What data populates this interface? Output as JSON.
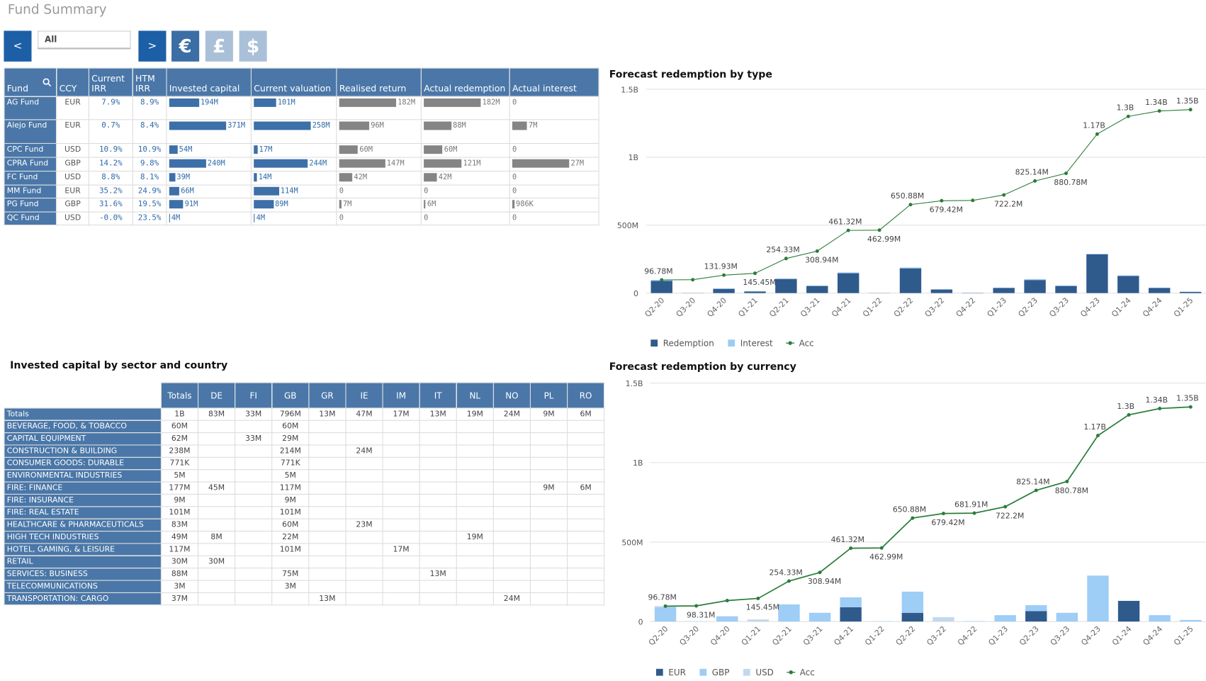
{
  "header": {
    "title": "Fund Summary"
  },
  "toolbar": {
    "prev": "<",
    "selection": "All",
    "next": ">",
    "currencies": [
      "€",
      "£",
      "$"
    ]
  },
  "fund_table": {
    "columns": [
      "Fund",
      "CCY",
      "Current IRR",
      "HTM IRR",
      "Invested capital",
      "Current valuation",
      "Realised return",
      "Actual redemption",
      "Actual interest"
    ],
    "rows": [
      [
        "AG Fund",
        "EUR",
        "7.9%",
        "8.9%",
        "194M",
        "101M",
        "182M",
        "182M",
        "0"
      ],
      [
        "Alejo Fund",
        "EUR",
        "0.7%",
        "8.4%",
        "371M",
        "258M",
        "96M",
        "88M",
        "7M"
      ],
      [
        "CPC Fund",
        "USD",
        "10.9%",
        "10.9%",
        "54M",
        "17M",
        "60M",
        "60M",
        "0"
      ],
      [
        "CPRA Fund",
        "GBP",
        "14.2%",
        "9.8%",
        "240M",
        "244M",
        "147M",
        "121M",
        "27M"
      ],
      [
        "FC Fund",
        "USD",
        "8.8%",
        "8.1%",
        "39M",
        "14M",
        "42M",
        "42M",
        "0"
      ],
      [
        "MM Fund",
        "EUR",
        "35.2%",
        "24.9%",
        "66M",
        "114M",
        "0",
        "0",
        "0"
      ],
      [
        "PG Fund",
        "GBP",
        "31.6%",
        "19.5%",
        "91M",
        "89M",
        "7M",
        "6M",
        "986K"
      ],
      [
        "QC Fund",
        "USD",
        "-0.0%",
        "23.5%",
        "4M",
        "4M",
        "0",
        "0",
        "0"
      ]
    ]
  },
  "sector_table": {
    "title": "Invested capital by sector and country",
    "columns": [
      "Totals",
      "DE",
      "FI",
      "GB",
      "GR",
      "IE",
      "IM",
      "IT",
      "NL",
      "NO",
      "PL",
      "RO"
    ],
    "rows": [
      [
        "Totals",
        "1B",
        "83M",
        "33M",
        "796M",
        "13M",
        "47M",
        "17M",
        "13M",
        "19M",
        "24M",
        "9M",
        "6M"
      ],
      [
        "BEVERAGE, FOOD, & TOBACCO",
        "60M",
        null,
        null,
        "60M",
        null,
        null,
        null,
        null,
        null,
        null,
        null,
        null
      ],
      [
        "CAPITAL EQUIPMENT",
        "62M",
        null,
        "33M",
        "29M",
        null,
        null,
        null,
        null,
        null,
        null,
        null,
        null
      ],
      [
        "CONSTRUCTION & BUILDING",
        "238M",
        null,
        null,
        "214M",
        null,
        "24M",
        null,
        null,
        null,
        null,
        null,
        null
      ],
      [
        "CONSUMER GOODS: DURABLE",
        "771K",
        null,
        null,
        "771K",
        null,
        null,
        null,
        null,
        null,
        null,
        null,
        null
      ],
      [
        "ENVIRONMENTAL INDUSTRIES",
        "5M",
        null,
        null,
        "5M",
        null,
        null,
        null,
        null,
        null,
        null,
        null,
        null
      ],
      [
        "FIRE: FINANCE",
        "177M",
        "45M",
        null,
        "117M",
        null,
        null,
        null,
        null,
        null,
        null,
        "9M",
        "6M"
      ],
      [
        "FIRE: INSURANCE",
        "9M",
        null,
        null,
        "9M",
        null,
        null,
        null,
        null,
        null,
        null,
        null,
        null
      ],
      [
        "FIRE: REAL ESTATE",
        "101M",
        null,
        null,
        "101M",
        null,
        null,
        null,
        null,
        null,
        null,
        null,
        null
      ],
      [
        "HEALTHCARE & PHARMACEUTICALS",
        "83M",
        null,
        null,
        "60M",
        null,
        "23M",
        null,
        null,
        null,
        null,
        null,
        null
      ],
      [
        "HIGH TECH INDUSTRIES",
        "49M",
        "8M",
        null,
        "22M",
        null,
        null,
        null,
        null,
        "19M",
        null,
        null,
        null
      ],
      [
        "HOTEL, GAMING, & LEISURE",
        "117M",
        null,
        null,
        "101M",
        null,
        null,
        "17M",
        null,
        null,
        null,
        null,
        null
      ],
      [
        "RETAIL",
        "30M",
        "30M",
        null,
        null,
        null,
        null,
        null,
        null,
        null,
        null,
        null,
        null
      ],
      [
        "SERVICES: BUSINESS",
        "88M",
        null,
        null,
        "75M",
        null,
        null,
        null,
        "13M",
        null,
        null,
        null,
        null
      ],
      [
        "TELECOMMUNICATIONS",
        "3M",
        null,
        null,
        "3M",
        null,
        null,
        null,
        null,
        null,
        null,
        null,
        null
      ],
      [
        "TRANSPORTATION: CARGO",
        "37M",
        null,
        null,
        null,
        "13M",
        null,
        null,
        null,
        null,
        "24M",
        null,
        null
      ]
    ]
  },
  "chart_data": [
    {
      "type": "combo",
      "title": "Forecast redemption by type",
      "categories": [
        "Q2-20",
        "Q3-20",
        "Q4-20",
        "Q1-21",
        "Q2-21",
        "Q3-21",
        "Q4-21",
        "Q1-22",
        "Q2-22",
        "Q3-22",
        "Q4-22",
        "Q1-23",
        "Q2-23",
        "Q3-23",
        "Q4-23",
        "Q1-24",
        "Q4-24",
        "Q1-25"
      ],
      "ylim": [
        0,
        1500000000
      ],
      "yticks": [
        0,
        {
          "value": 500000000,
          "label": "500M"
        },
        {
          "value": 1000000000,
          "label": "1B"
        },
        {
          "value": 1500000000,
          "label": "1.5B"
        }
      ],
      "grid": true,
      "series": [
        {
          "name": "Redemption",
          "type": "bar",
          "color": "#2f5a8c",
          "values": [
            90000000,
            1000000,
            31000000,
            12000000,
            103000000,
            52000000,
            146000000,
            1000000,
            182000000,
            26000000,
            2000000,
            38000000,
            96000000,
            52000000,
            285000000,
            126000000,
            38000000,
            9000000
          ]
        },
        {
          "name": "Interest",
          "type": "bar",
          "color": "#9ecbf2",
          "values": [
            7000000,
            500000,
            3000000,
            1500000,
            6000000,
            3000000,
            6000000,
            700000,
            6000000,
            2500000,
            500000,
            2000000,
            7000000,
            3600000,
            4000000,
            4000000,
            2000000,
            1000000
          ]
        },
        {
          "name": "Acc",
          "type": "line",
          "color": "#2b7d3a",
          "values": [
            96780000,
            98310000,
            131930000,
            145450000,
            254330000,
            308940000,
            461320000,
            462990000,
            650880000,
            679420000,
            681910000,
            722200000,
            825140000,
            880780000,
            1170000000,
            1300000000,
            1340000000,
            1350000000
          ],
          "value_labels": [
            "96.78M",
            null,
            "131.93M",
            "145.45M",
            "254.33M",
            "308.94M",
            "461.32M",
            "462.99M",
            "650.88M",
            "679.42M",
            null,
            "722.2M",
            "825.14M",
            "880.78M",
            "1.17B",
            "1.3B",
            "1.34B",
            "1.35B"
          ]
        }
      ]
    },
    {
      "type": "combo",
      "title": "Forecast redemption by currency",
      "categories": [
        "Q2-20",
        "Q3-20",
        "Q4-20",
        "Q1-21",
        "Q2-21",
        "Q3-21",
        "Q4-21",
        "Q1-22",
        "Q2-22",
        "Q3-22",
        "Q4-22",
        "Q1-23",
        "Q2-23",
        "Q3-23",
        "Q4-23",
        "Q1-24",
        "Q4-24",
        "Q1-25"
      ],
      "ylim": [
        0,
        1500000000
      ],
      "yticks": [
        0,
        {
          "value": 500000000,
          "label": "500M"
        },
        {
          "value": 1000000000,
          "label": "1B"
        },
        {
          "value": 1500000000,
          "label": "1.5B"
        }
      ],
      "grid": true,
      "series": [
        {
          "name": "EUR",
          "type": "bar",
          "color": "#2f5a8c",
          "values": [
            0,
            0,
            0,
            0,
            0,
            0,
            90000000,
            0,
            55000000,
            0,
            0,
            0,
            65000000,
            0,
            0,
            130000000,
            0,
            0
          ]
        },
        {
          "name": "GBP",
          "type": "bar",
          "color": "#9ecdf5",
          "values": [
            90000000,
            1500000,
            33000000,
            0,
            108000000,
            55000000,
            62000000,
            1700000,
            133000000,
            0,
            2500000,
            40000000,
            38000000,
            55000000,
            289000000,
            0,
            40000000,
            10000000
          ]
        },
        {
          "name": "USD",
          "type": "bar",
          "color": "#c3d8ee",
          "values": [
            7000000,
            0,
            0,
            13000000,
            0,
            0,
            0,
            0,
            0,
            28000000,
            0,
            0,
            0,
            0,
            0,
            0,
            0,
            0
          ]
        },
        {
          "name": "Acc",
          "type": "line",
          "color": "#2b7d3a",
          "values": [
            96780000,
            98310000,
            131930000,
            145450000,
            254330000,
            308940000,
            461320000,
            462990000,
            650880000,
            679420000,
            681910000,
            722200000,
            825140000,
            880780000,
            1170000000,
            1300000000,
            1340000000,
            1350000000
          ],
          "value_labels": [
            "96.78M",
            "98.31M",
            null,
            "145.45M",
            "254.33M",
            "308.94M",
            "461.32M",
            "462.99M",
            "650.88M",
            "679.42M",
            "681.91M",
            "722.2M",
            "825.14M",
            "880.78M",
            "1.17B",
            "1.3B",
            "1.34B",
            "1.35B"
          ]
        }
      ]
    }
  ]
}
